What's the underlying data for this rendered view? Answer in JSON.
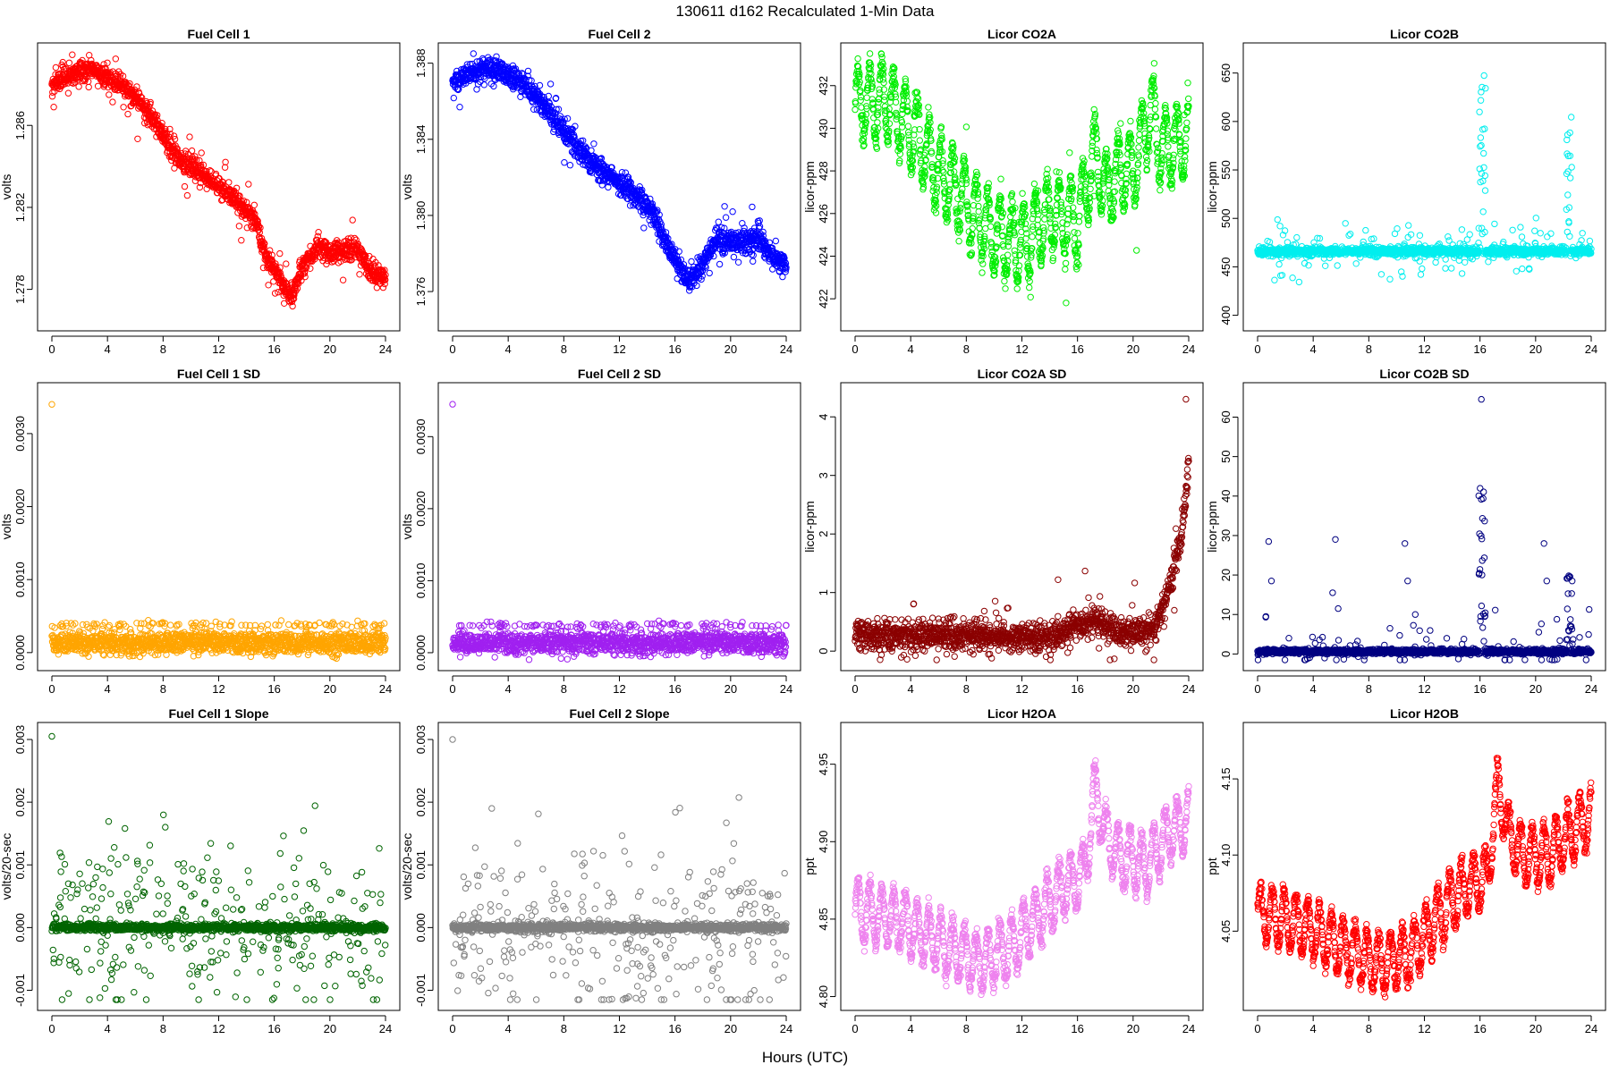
{
  "figure": {
    "title": "130611   d162   Recalculated 1-Min Data",
    "xlabel": "Hours (UTC)"
  },
  "chart_data": [
    {
      "id": "fc1",
      "type": "scatter",
      "title": "Fuel Cell 1",
      "ylabel": "volts",
      "color": "#ff0000",
      "xlim": [
        0,
        24
      ],
      "ylim": [
        1.2765,
        1.2895
      ],
      "xticks": [
        0,
        4,
        8,
        12,
        16,
        20,
        24
      ],
      "xtick_labels": [
        "0",
        "4",
        "8",
        "12",
        "16",
        "20",
        "24"
      ],
      "yticks": [
        1.278,
        1.282,
        1.286
      ],
      "ytick_labels": [
        "1.278",
        "1.282",
        "1.286"
      ],
      "model": {
        "x": [
          0,
          2.5,
          5,
          7,
          9,
          11,
          13,
          14.5,
          15.5,
          17.2,
          18,
          19,
          20,
          22,
          23,
          24
        ],
        "y": [
          1.288,
          1.2888,
          1.288,
          1.2866,
          1.2845,
          1.2835,
          1.2825,
          1.2815,
          1.2795,
          1.2776,
          1.279,
          1.28,
          1.2798,
          1.28,
          1.2788,
          1.2786
        ],
        "spread": 0.00025,
        "spikes": 0.06,
        "spike_amp": 0.0006
      }
    },
    {
      "id": "fc2",
      "type": "scatter",
      "title": "Fuel Cell 2",
      "ylabel": "volts",
      "color": "#0000ff",
      "xlim": [
        0,
        24
      ],
      "ylim": [
        1.3745,
        1.3885
      ],
      "xticks": [
        0,
        4,
        8,
        12,
        16,
        20,
        24
      ],
      "xtick_labels": [
        "0",
        "4",
        "8",
        "12",
        "16",
        "20",
        "24"
      ],
      "yticks": [
        1.376,
        1.38,
        1.384,
        1.388
      ],
      "ytick_labels": [
        "1.376",
        "1.380",
        "1.384",
        "1.388"
      ],
      "model": {
        "x": [
          0,
          2.5,
          5,
          7,
          9,
          11,
          13,
          14.5,
          15.5,
          17,
          18,
          19,
          20,
          22,
          23,
          24
        ],
        "y": [
          1.387,
          1.3878,
          1.387,
          1.3855,
          1.3835,
          1.3822,
          1.3812,
          1.38,
          1.3783,
          1.3765,
          1.3775,
          1.3788,
          1.3785,
          1.3788,
          1.3778,
          1.3773
        ],
        "spread": 0.0003,
        "spikes": 0.06,
        "spike_amp": 0.0007
      }
    },
    {
      "id": "co2a",
      "type": "scatter",
      "title": "Licor CO2A",
      "ylabel": "licor-ppm",
      "color": "#00ee00",
      "xlim": [
        0,
        24
      ],
      "ylim": [
        421,
        433.5
      ],
      "xticks": [
        0,
        4,
        8,
        12,
        16,
        20,
        24
      ],
      "xtick_labels": [
        "0",
        "4",
        "8",
        "12",
        "16",
        "20",
        "24"
      ],
      "yticks": [
        422,
        424,
        426,
        428,
        430,
        432
      ],
      "ytick_labels": [
        "422",
        "424",
        "426",
        "428",
        "430",
        "432"
      ],
      "model": {
        "x": [
          0,
          2,
          4,
          6,
          8,
          10,
          12,
          14,
          16,
          17.3,
          18,
          19,
          20,
          21.3,
          22,
          24
        ],
        "y": [
          431,
          431.5,
          430,
          428,
          426.5,
          425,
          424.5,
          426,
          425.5,
          429,
          427,
          428,
          428,
          431,
          429,
          429.5
        ],
        "osc_amp": 1.7,
        "osc_period": 0.85,
        "spread": 0.3,
        "spikes": 0.03,
        "spike_amp": 1.2
      }
    },
    {
      "id": "co2b",
      "type": "scatter",
      "title": "Licor CO2B",
      "ylabel": "licor-ppm",
      "color": "#00eeee",
      "xlim": [
        0,
        24
      ],
      "ylim": [
        395,
        670
      ],
      "xticks": [
        0,
        4,
        8,
        12,
        16,
        20,
        24
      ],
      "xtick_labels": [
        "0",
        "4",
        "8",
        "12",
        "16",
        "20",
        "24"
      ],
      "yticks": [
        400,
        450,
        500,
        550,
        600,
        650
      ],
      "ytick_labels": [
        "400",
        "450",
        "500",
        "550",
        "600",
        "650"
      ],
      "model": {
        "x": [
          0,
          24
        ],
        "y": [
          466,
          466
        ],
        "spread": 2,
        "spikes": 0.1,
        "spike_amp": 15,
        "bursts": [
          {
            "x0": 15.9,
            "x1": 16.4,
            "lo": 480,
            "hi": 650
          },
          {
            "x0": 22.2,
            "x1": 22.6,
            "lo": 470,
            "hi": 612
          }
        ]
      }
    },
    {
      "id": "fc1sd",
      "type": "scatter",
      "title": "Fuel Cell 1 SD",
      "ylabel": "volts",
      "color": "#ffa500",
      "xlim": [
        0,
        24
      ],
      "ylim": [
        -0.0001,
        0.00355
      ],
      "xticks": [
        0,
        4,
        8,
        12,
        16,
        20,
        24
      ],
      "xtick_labels": [
        "0",
        "4",
        "8",
        "12",
        "16",
        "20",
        "24"
      ],
      "yticks": [
        0.0,
        0.001,
        0.002,
        0.003
      ],
      "ytick_labels": [
        "0.0000",
        "0.0010",
        "0.0020",
        "0.0030"
      ],
      "model": {
        "x": [
          0,
          24
        ],
        "y": [
          0.00013,
          0.00013
        ],
        "spread": 7e-05,
        "bands": [
          5e-05,
          0.00022,
          0.00038
        ],
        "band_frac": 0.25,
        "outliers": [
          {
            "x": 0.0,
            "y": 0.0034
          }
        ]
      }
    },
    {
      "id": "fc2sd",
      "type": "scatter",
      "title": "Fuel Cell 2 SD",
      "ylabel": "volts",
      "color": "#a020f0",
      "xlim": [
        0,
        24
      ],
      "ylim": [
        -0.0001,
        0.0036
      ],
      "xticks": [
        0,
        4,
        8,
        12,
        16,
        20,
        24
      ],
      "xtick_labels": [
        "0",
        "4",
        "8",
        "12",
        "16",
        "20",
        "24"
      ],
      "yticks": [
        0.0,
        0.001,
        0.002,
        0.003
      ],
      "ytick_labels": [
        "0.0000",
        "0.0010",
        "0.0020",
        "0.0030"
      ],
      "model": {
        "x": [
          0,
          24
        ],
        "y": [
          0.00013,
          0.00013
        ],
        "spread": 7e-05,
        "bands": [
          5e-05,
          0.00022,
          0.00038
        ],
        "band_frac": 0.25,
        "outliers": [
          {
            "x": 0.0,
            "y": 0.00345
          }
        ]
      }
    },
    {
      "id": "co2asd",
      "type": "scatter",
      "title": "Licor CO2A SD",
      "ylabel": "licor-ppm",
      "color": "#8b0000",
      "xlim": [
        0,
        24
      ],
      "ylim": [
        -0.15,
        4.4
      ],
      "xticks": [
        0,
        4,
        8,
        12,
        16,
        20,
        24
      ],
      "xtick_labels": [
        "0",
        "4",
        "8",
        "12",
        "16",
        "20",
        "24"
      ],
      "yticks": [
        0,
        1,
        2,
        3,
        4
      ],
      "ytick_labels": [
        "0",
        "1",
        "2",
        "3",
        "4"
      ],
      "model": {
        "x": [
          0,
          14,
          16,
          17.5,
          19,
          21.5,
          22.5,
          23.5,
          24
        ],
        "y": [
          0.28,
          0.25,
          0.45,
          0.5,
          0.3,
          0.35,
          1.0,
          2.0,
          3.2
        ],
        "spread": 0.12,
        "spikes": 0.04,
        "spike_amp": 0.35,
        "outliers": [
          {
            "x": 14.6,
            "y": 1.22
          },
          {
            "x": 23.8,
            "y": 4.3
          }
        ]
      }
    },
    {
      "id": "co2bsd",
      "type": "scatter",
      "title": "Licor CO2B SD",
      "ylabel": "licor-ppm",
      "color": "#000080",
      "xlim": [
        0,
        24
      ],
      "ylim": [
        -1.5,
        66
      ],
      "xticks": [
        0,
        4,
        8,
        12,
        16,
        20,
        24
      ],
      "xtick_labels": [
        "0",
        "4",
        "8",
        "12",
        "16",
        "20",
        "24"
      ],
      "yticks": [
        0,
        10,
        20,
        30,
        40,
        50,
        60
      ],
      "ytick_labels": [
        "0",
        "10",
        "20",
        "30",
        "40",
        "50",
        "60"
      ],
      "model": {
        "x": [
          0,
          24
        ],
        "y": [
          0.6,
          0.6
        ],
        "spread": 0.3,
        "spikes": 0.05,
        "spike_amp": 4,
        "bursts": [
          {
            "x0": 15.9,
            "x1": 16.4,
            "lo": 1,
            "hi": 44
          },
          {
            "x0": 22.2,
            "x1": 22.7,
            "lo": 1,
            "hi": 20
          }
        ],
        "outliers": [
          {
            "x": 0.6,
            "y": 9.5
          },
          {
            "x": 0.8,
            "y": 28.5
          },
          {
            "x": 1.0,
            "y": 18.5
          },
          {
            "x": 5.6,
            "y": 29.0
          },
          {
            "x": 5.4,
            "y": 15.5
          },
          {
            "x": 5.8,
            "y": 11.5
          },
          {
            "x": 10.6,
            "y": 28.0
          },
          {
            "x": 10.8,
            "y": 18.5
          },
          {
            "x": 16.1,
            "y": 64.5
          },
          {
            "x": 20.6,
            "y": 28.0
          },
          {
            "x": 20.8,
            "y": 18.5
          }
        ]
      }
    },
    {
      "id": "fc1slope",
      "type": "scatter",
      "title": "Fuel Cell 1 Slope",
      "ylabel": "volts/20-sec",
      "color": "#006400",
      "xlim": [
        0,
        24
      ],
      "ylim": [
        -0.00115,
        0.0031
      ],
      "xticks": [
        0,
        4,
        8,
        12,
        16,
        20,
        24
      ],
      "xtick_labels": [
        "0",
        "4",
        "8",
        "12",
        "16",
        "20",
        "24"
      ],
      "yticks": [
        -0.001,
        0.0,
        0.001,
        0.002,
        0.003
      ],
      "ytick_labels": [
        "-0.001",
        "0.000",
        "0.001",
        "0.002",
        "0.003"
      ],
      "model": {
        "x": [
          0,
          24
        ],
        "y": [
          0,
          0
        ],
        "spread": 3e-05,
        "spikes": 0.22,
        "spike_amp": 0.0007,
        "outliers": [
          {
            "x": 0.0,
            "y": 0.00305
          }
        ]
      }
    },
    {
      "id": "fc2slope",
      "type": "scatter",
      "title": "Fuel Cell 2 Slope",
      "ylabel": "volts/20-sec",
      "color": "#808080",
      "xlim": [
        0,
        24
      ],
      "ylim": [
        -0.00115,
        0.0031
      ],
      "xticks": [
        0,
        4,
        8,
        12,
        16,
        20,
        24
      ],
      "xtick_labels": [
        "0",
        "4",
        "8",
        "12",
        "16",
        "20",
        "24"
      ],
      "yticks": [
        -0.001,
        0.0,
        0.001,
        0.002,
        0.003
      ],
      "ytick_labels": [
        "-0.001",
        "0.000",
        "0.001",
        "0.002",
        "0.003"
      ],
      "model": {
        "x": [
          0,
          24
        ],
        "y": [
          0,
          0
        ],
        "spread": 3e-05,
        "spikes": 0.22,
        "spike_amp": 0.0007,
        "outliers": [
          {
            "x": 0.0,
            "y": 0.003
          }
        ]
      }
    },
    {
      "id": "h2oa",
      "type": "scatter",
      "title": "Licor H2OA",
      "ylabel": "ppt",
      "color": "#ee82ee",
      "xlim": [
        0,
        24
      ],
      "ylim": [
        4.798,
        4.97
      ],
      "xticks": [
        0,
        4,
        8,
        12,
        16,
        20,
        24
      ],
      "xtick_labels": [
        "0",
        "4",
        "8",
        "12",
        "16",
        "20",
        "24"
      ],
      "yticks": [
        4.8,
        4.85,
        4.9,
        4.95
      ],
      "ytick_labels": [
        "4.80",
        "4.85",
        "4.90",
        "4.95"
      ],
      "model": {
        "x": [
          0,
          3,
          6,
          9,
          11,
          13,
          15,
          16.5,
          17.3,
          18,
          19,
          21,
          22.5,
          24
        ],
        "y": [
          4.855,
          4.85,
          4.835,
          4.822,
          4.83,
          4.85,
          4.87,
          4.88,
          4.935,
          4.905,
          4.89,
          4.885,
          4.905,
          4.915
        ],
        "osc_amp": 0.018,
        "osc_period": 0.85,
        "spread": 0.003
      }
    },
    {
      "id": "h2ob",
      "type": "scatter",
      "title": "Licor H2OB",
      "ylabel": "ppt",
      "color": "#ff0000",
      "xlim": [
        0,
        24
      ],
      "ylim": [
        4.005,
        4.18
      ],
      "xticks": [
        0,
        4,
        8,
        12,
        16,
        20,
        24
      ],
      "xtick_labels": [
        "0",
        "4",
        "8",
        "12",
        "16",
        "20",
        "24"
      ],
      "yticks": [
        4.05,
        4.1,
        4.15
      ],
      "ytick_labels": [
        "4.05",
        "4.10",
        "4.15"
      ],
      "model": {
        "x": [
          0,
          3,
          6,
          9,
          11,
          13,
          15,
          16.5,
          17.3,
          18,
          19,
          21,
          22.5,
          24
        ],
        "y": [
          4.062,
          4.055,
          4.04,
          4.028,
          4.035,
          4.06,
          4.08,
          4.085,
          4.145,
          4.115,
          4.1,
          4.1,
          4.115,
          4.125
        ],
        "osc_amp": 0.018,
        "osc_period": 0.85,
        "spread": 0.003
      }
    }
  ]
}
